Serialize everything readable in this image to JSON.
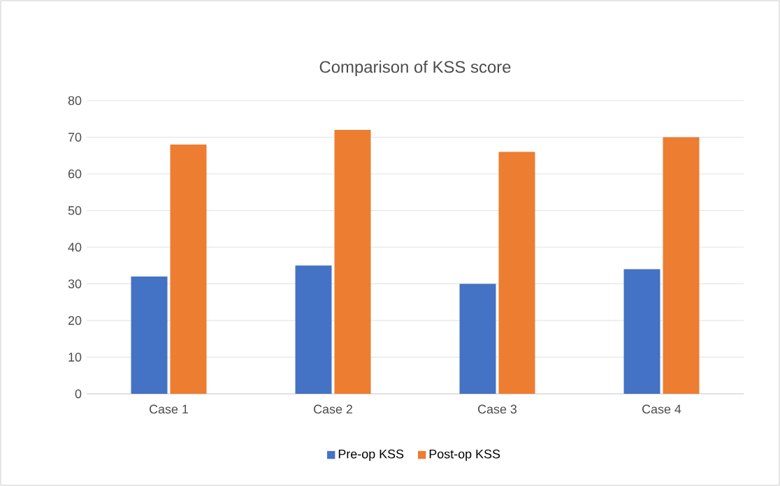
{
  "chart_data": {
    "type": "bar",
    "title": "Comparison of KSS score",
    "categories": [
      "Case 1",
      "Case 2",
      "Case 3",
      "Case 4"
    ],
    "series": [
      {
        "name": "Pre-op KSS",
        "color": "#4472c4",
        "values": [
          32,
          35,
          30,
          34
        ]
      },
      {
        "name": "Post-op KSS",
        "color": "#ed7d31",
        "values": [
          68,
          72,
          66,
          70
        ]
      }
    ],
    "ylim": [
      0,
      80
    ],
    "yticks": [
      0,
      10,
      20,
      30,
      40,
      50,
      60,
      70,
      80
    ],
    "grid": "y",
    "legend": "bottom"
  }
}
